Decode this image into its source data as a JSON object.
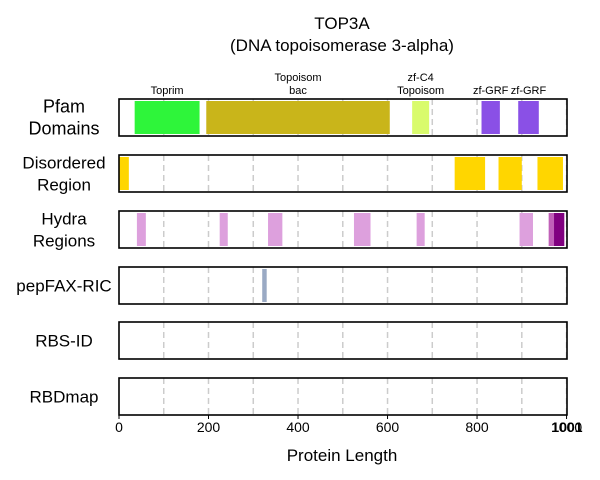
{
  "chart_data": {
    "type": "bar",
    "title": "TOP3A",
    "subtitle": "(DNA topoisomerase 3-alpha)",
    "xlabel": "Protein Length",
    "xlim": [
      0,
      1001
    ],
    "protein_length": 1001,
    "length_label": "1001",
    "x_ticks": [
      {
        "value": 0,
        "label": "0"
      },
      {
        "value": 200,
        "label": "200"
      },
      {
        "value": 400,
        "label": "400"
      },
      {
        "value": 600,
        "label": "600"
      },
      {
        "value": 800,
        "label": "800"
      },
      {
        "value": 1000,
        "label": "1000"
      }
    ],
    "gridlines": [
      100,
      200,
      300,
      400,
      500,
      600,
      700,
      800,
      900,
      1000
    ],
    "grid": true,
    "tracks": [
      {
        "label_lines": [
          "Pfam",
          "Domains"
        ],
        "segments": [
          {
            "start": 35,
            "end": 180,
            "color": "#2ef53a",
            "label_lines": [
              "Toprim"
            ]
          },
          {
            "start": 195,
            "end": 605,
            "color": "#c9b51a",
            "label_lines": [
              "Topoisom",
              "bac"
            ]
          },
          {
            "start": 655,
            "end": 693,
            "color": "#d9fb6c",
            "label_lines": [
              "zf-C4",
              "Topoisom"
            ]
          },
          {
            "start": 810,
            "end": 851,
            "color": "#8a50e6",
            "label_lines": [
              "zf-GRF"
            ]
          },
          {
            "start": 892,
            "end": 938,
            "color": "#8a50e6",
            "label_lines": [
              "zf-GRF"
            ]
          }
        ]
      },
      {
        "label_lines": [
          "Disordered",
          "Region"
        ],
        "segments": [
          {
            "start": 0,
            "end": 22,
            "color": "#ffd600"
          },
          {
            "start": 750,
            "end": 818,
            "color": "#ffd600"
          },
          {
            "start": 848,
            "end": 900,
            "color": "#ffd600"
          },
          {
            "start": 935,
            "end": 992,
            "color": "#ffd600"
          }
        ]
      },
      {
        "label_lines": [
          "Hydra",
          "Regions"
        ],
        "segments": [
          {
            "start": 40,
            "end": 60,
            "color": "#dda0dd"
          },
          {
            "start": 225,
            "end": 243,
            "color": "#dda0dd"
          },
          {
            "start": 333,
            "end": 365,
            "color": "#dda0dd"
          },
          {
            "start": 525,
            "end": 562,
            "color": "#dda0dd"
          },
          {
            "start": 665,
            "end": 683,
            "color": "#dda0dd"
          },
          {
            "start": 895,
            "end": 925,
            "color": "#dda0dd"
          },
          {
            "start": 960,
            "end": 972,
            "color": "#c060b8"
          },
          {
            "start": 972,
            "end": 995,
            "color": "#800080"
          }
        ]
      },
      {
        "label_lines": [
          "pepFAX-RIC"
        ],
        "segments": [
          {
            "start": 320,
            "end": 330,
            "color": "#9aaac4"
          }
        ]
      },
      {
        "label_lines": [
          "RBS-ID"
        ],
        "segments": []
      },
      {
        "label_lines": [
          "RBDmap"
        ],
        "segments": []
      }
    ]
  }
}
